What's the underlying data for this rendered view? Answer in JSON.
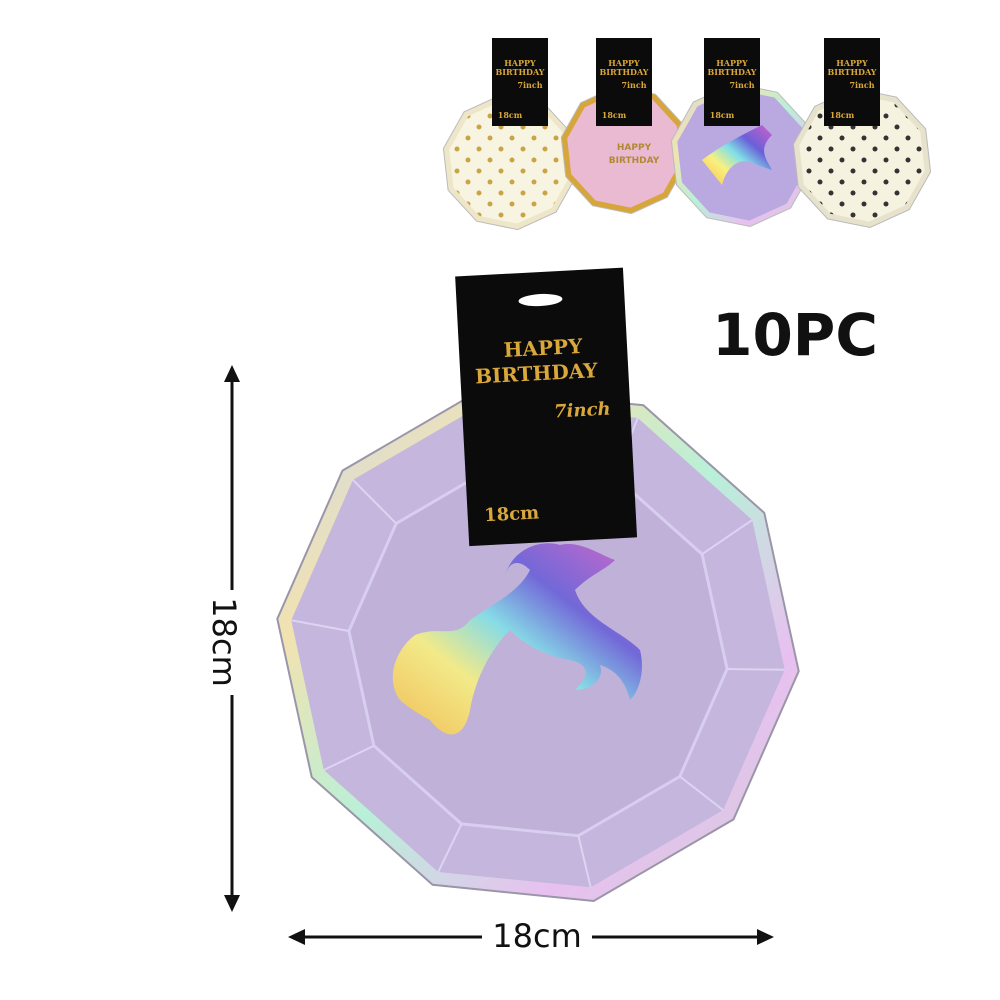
{
  "count_label": "10PC",
  "dimensions": {
    "height": "18cm",
    "width": "18cm"
  },
  "main_plate": {
    "tag": {
      "line1": "HAPPY",
      "line2": "BIRTHDAY",
      "size_inch": "7inch",
      "size_cm": "18cm"
    }
  },
  "variants": [
    {
      "tag": {
        "line1": "HAPPY",
        "line2": "BIRTHDAY",
        "size_inch": "7inch",
        "size_cm": "18cm"
      }
    },
    {
      "tag": {
        "line1": "HAPPY",
        "line2": "BIRTHDAY",
        "size_inch": "7inch",
        "size_cm": "18cm"
      },
      "print": [
        "HAPPY",
        "BIRTHDAY"
      ]
    },
    {
      "tag": {
        "line1": "HAPPY",
        "line2": "BIRTHDAY",
        "size_inch": "7inch",
        "size_cm": "18cm"
      }
    },
    {
      "tag": {
        "line1": "HAPPY",
        "line2": "BIRTHDAY",
        "size_inch": "7inch",
        "size_cm": "18cm"
      }
    }
  ]
}
